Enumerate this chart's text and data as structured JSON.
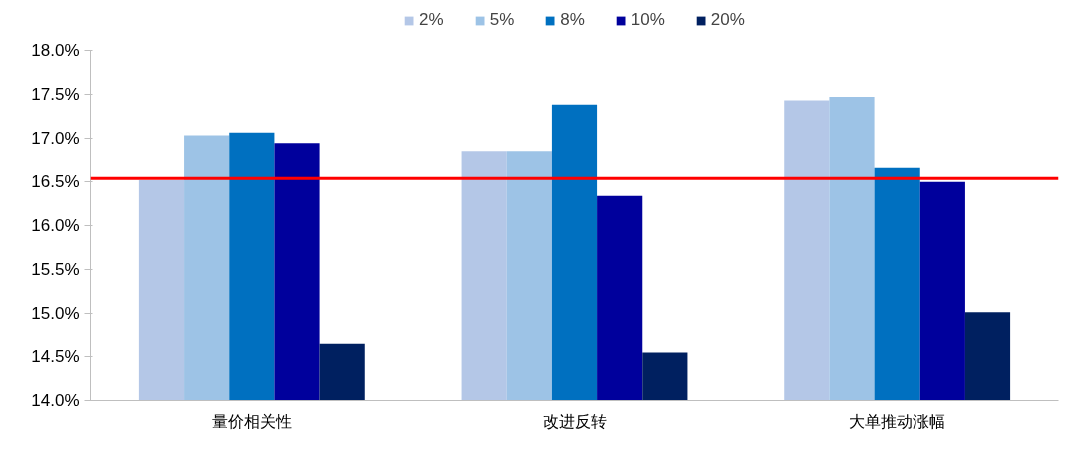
{
  "chart_data": {
    "type": "bar",
    "categories": [
      "量价相关性",
      "改进反转",
      "大单推动涨幅"
    ],
    "series": [
      {
        "name": "2%",
        "color": "#b4c7e7",
        "values": [
          16.52,
          16.85,
          17.43
        ]
      },
      {
        "name": "5%",
        "color": "#9dc3e6",
        "values": [
          17.03,
          16.85,
          17.47
        ]
      },
      {
        "name": "8%",
        "color": "#0070c0",
        "values": [
          17.06,
          17.38,
          16.66
        ]
      },
      {
        "name": "10%",
        "color": "#00009c",
        "values": [
          16.94,
          16.34,
          16.5
        ]
      },
      {
        "name": "20%",
        "color": "#002060",
        "values": [
          14.65,
          14.55,
          15.01
        ]
      }
    ],
    "ylim": [
      14.0,
      18.0
    ],
    "yticks": [
      {
        "value": 14.0,
        "label": "14.0%"
      },
      {
        "value": 14.5,
        "label": "14.5%"
      },
      {
        "value": 15.0,
        "label": "15.0%"
      },
      {
        "value": 15.5,
        "label": "15.5%"
      },
      {
        "value": 16.0,
        "label": "16.0%"
      },
      {
        "value": 16.5,
        "label": "16.5%"
      },
      {
        "value": 17.0,
        "label": "17.0%"
      },
      {
        "value": 17.5,
        "label": "17.5%"
      },
      {
        "value": 18.0,
        "label": "18.0%"
      }
    ],
    "ref_lines": [
      {
        "axis": "y",
        "value": 16.54,
        "color": "#ff0000"
      }
    ],
    "grid": false,
    "legend": "top"
  }
}
